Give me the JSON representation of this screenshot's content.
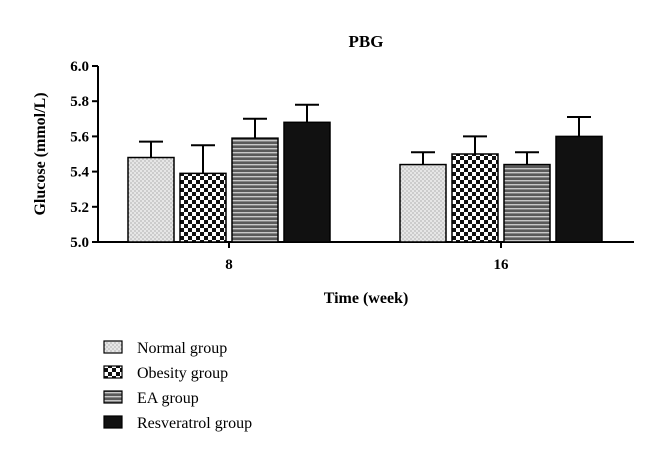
{
  "chart_data": {
    "type": "bar",
    "title": "PBG",
    "xlabel": "Time (week)",
    "ylabel": "Glucose (mmol/L)",
    "ylim": [
      5.0,
      6.0
    ],
    "yticks": [
      "5.0",
      "5.2",
      "5.4",
      "5.6",
      "5.8",
      "6.0"
    ],
    "categories": [
      "8",
      "16"
    ],
    "error_bars": "upper",
    "legend_position": "bottom-left",
    "series": [
      {
        "name": "Normal group",
        "values": [
          5.48,
          5.44
        ],
        "errors": [
          0.09,
          0.07
        ],
        "pattern": "dots",
        "color": "#e4e4e4"
      },
      {
        "name": "Obesity group",
        "values": [
          5.39,
          5.5
        ],
        "errors": [
          0.16,
          0.1
        ],
        "pattern": "checker",
        "color": "#000000"
      },
      {
        "name": "EA group",
        "values": [
          5.59,
          5.44
        ],
        "errors": [
          0.11,
          0.07
        ],
        "pattern": "hlines",
        "color": "#6a6a6a"
      },
      {
        "name": "Resveratrol group",
        "values": [
          5.68,
          5.6
        ],
        "errors": [
          0.1,
          0.11
        ],
        "pattern": "solid",
        "color": "#111111"
      }
    ]
  }
}
